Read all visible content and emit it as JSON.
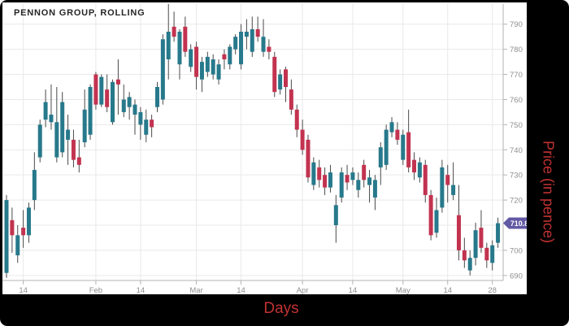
{
  "title": "PENNON GROUP, ROLLING",
  "axes": {
    "x_label": "Days",
    "y_label": "Price (in pence)",
    "y_ticks": [
      690,
      700,
      720,
      730,
      740,
      750,
      760,
      770,
      780,
      790
    ],
    "x_tick_labels": [
      "14",
      "Feb",
      "14",
      "Mar",
      "14",
      "Apr",
      "14",
      "May",
      "14",
      "28"
    ],
    "x_tick_days": [
      3,
      16,
      24,
      34,
      42,
      53,
      62,
      71,
      79,
      87
    ]
  },
  "last_price_badge": {
    "value": "710.8",
    "color": "#6159a4",
    "text_color": "#ffffff"
  },
  "colors": {
    "up_candle": "#27798b",
    "down_candle": "#c23350",
    "wick": "#4a4a4a",
    "grid": "#e9e9e9",
    "axis_line": "#b3b3b3",
    "tick_text": "#8f8f8f",
    "axis_title_red": "#c23232",
    "frame_black": "#000000",
    "canvas_white": "#ffffff"
  },
  "chart_data": {
    "type": "candlestick",
    "title": "PENNON GROUP, ROLLING",
    "xlabel": "Days",
    "ylabel": "Price (in pence)",
    "ylim": [
      688,
      798
    ],
    "grid": true,
    "last_close": 710.8,
    "ohlc_format": [
      "open",
      "high",
      "low",
      "close"
    ],
    "candles": [
      [
        691,
        722,
        689,
        720
      ],
      [
        712,
        717,
        699,
        706
      ],
      [
        698,
        710,
        695,
        706
      ],
      [
        709,
        716,
        701,
        706
      ],
      [
        706,
        719,
        703,
        717
      ],
      [
        720,
        739,
        716,
        732
      ],
      [
        737,
        752,
        735,
        750
      ],
      [
        752,
        764,
        749,
        759
      ],
      [
        751,
        766,
        748,
        754
      ],
      [
        737,
        765,
        735,
        751
      ],
      [
        739,
        763,
        737,
        759
      ],
      [
        744,
        754,
        734,
        748
      ],
      [
        744,
        748,
        733,
        736
      ],
      [
        737,
        744,
        731,
        734
      ],
      [
        743,
        764,
        741,
        756
      ],
      [
        746,
        766,
        744,
        765
      ],
      [
        770,
        771,
        756,
        758
      ],
      [
        758,
        770,
        757,
        769
      ],
      [
        764,
        770,
        755,
        757
      ],
      [
        751,
        768,
        750,
        767
      ],
      [
        768,
        776,
        754,
        766
      ],
      [
        755,
        766,
        753,
        760
      ],
      [
        757,
        763,
        752,
        761
      ],
      [
        754,
        760,
        746,
        758
      ],
      [
        750,
        757,
        744,
        755
      ],
      [
        746,
        756,
        743,
        752
      ],
      [
        752,
        754,
        745,
        749
      ],
      [
        757,
        767,
        755,
        765
      ],
      [
        760,
        786,
        758,
        784
      ],
      [
        776,
        798,
        768,
        787
      ],
      [
        789,
        795,
        783,
        785
      ],
      [
        774,
        788,
        768,
        787
      ],
      [
        789,
        793,
        777,
        779
      ],
      [
        773,
        782,
        771,
        780
      ],
      [
        781,
        783,
        764,
        769
      ],
      [
        768,
        777,
        763,
        775
      ],
      [
        771,
        779,
        769,
        777
      ],
      [
        770,
        778,
        768,
        776
      ],
      [
        768,
        776,
        766,
        774
      ],
      [
        778,
        780,
        772,
        776
      ],
      [
        774,
        782,
        772,
        781
      ],
      [
        780,
        786,
        778,
        785
      ],
      [
        774,
        790,
        772,
        787
      ],
      [
        785,
        792,
        780,
        787
      ],
      [
        779,
        793,
        777,
        788
      ],
      [
        788,
        793,
        783,
        785
      ],
      [
        779,
        792,
        777,
        785
      ],
      [
        781,
        784,
        776,
        779
      ],
      [
        777,
        779,
        761,
        763
      ],
      [
        764,
        772,
        762,
        770
      ],
      [
        772,
        773,
        759,
        765
      ],
      [
        764,
        768,
        754,
        756
      ],
      [
        756,
        758,
        745,
        748
      ],
      [
        748,
        752,
        738,
        740
      ],
      [
        744,
        746,
        727,
        729
      ],
      [
        726,
        737,
        724,
        735
      ],
      [
        733,
        736,
        725,
        728
      ],
      [
        730,
        733,
        722,
        725
      ],
      [
        725,
        734,
        723,
        731
      ],
      [
        710,
        722,
        703,
        718
      ],
      [
        721,
        733,
        719,
        731
      ],
      [
        730,
        734,
        724,
        727
      ],
      [
        728,
        733,
        726,
        731
      ],
      [
        724,
        731,
        721,
        728
      ],
      [
        734,
        736,
        725,
        728
      ],
      [
        726,
        732,
        719,
        729
      ],
      [
        721,
        730,
        716,
        728
      ],
      [
        733,
        743,
        726,
        741
      ],
      [
        734,
        750,
        732,
        748
      ],
      [
        747,
        753,
        745,
        751
      ],
      [
        748,
        751,
        742,
        744
      ],
      [
        736,
        748,
        734,
        746
      ],
      [
        747,
        756,
        731,
        733
      ],
      [
        736,
        739,
        728,
        731
      ],
      [
        729,
        737,
        727,
        735
      ],
      [
        734,
        736,
        719,
        722
      ],
      [
        722,
        724,
        704,
        706
      ],
      [
        707,
        721,
        705,
        716
      ],
      [
        717,
        736,
        715,
        733
      ],
      [
        730,
        734,
        719,
        726
      ],
      [
        722,
        735,
        720,
        726
      ],
      [
        714,
        726,
        696,
        700
      ],
      [
        700,
        705,
        693,
        696
      ],
      [
        692,
        700,
        690,
        697
      ],
      [
        697,
        711,
        694,
        708
      ],
      [
        709,
        716,
        699,
        701
      ],
      [
        701,
        703,
        693,
        696
      ],
      [
        695,
        704,
        692,
        702
      ],
      [
        703,
        713,
        701,
        710.8
      ]
    ]
  }
}
